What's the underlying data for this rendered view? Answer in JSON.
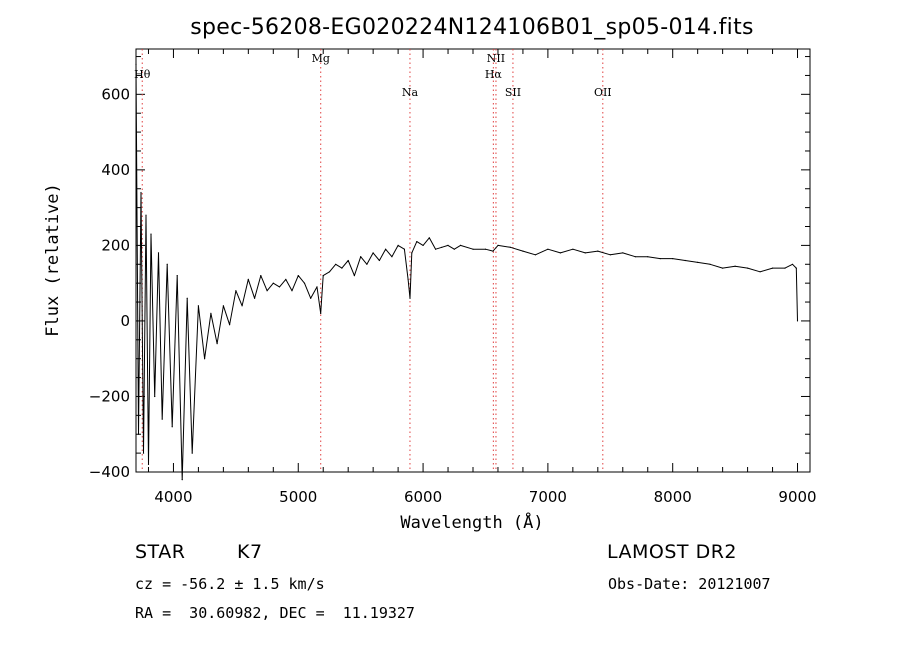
{
  "chart_data": {
    "type": "line",
    "title": "spec-56208-EG020224N124106B01_sp05-014.fits",
    "xlabel": "Wavelength (Å)",
    "ylabel": "Flux (relative)",
    "xlim": [
      3700,
      9100
    ],
    "ylim": [
      -400,
      720
    ],
    "xticks": [
      4000,
      5000,
      6000,
      7000,
      8000,
      9000
    ],
    "yticks": [
      -400,
      -200,
      0,
      200,
      400,
      600
    ],
    "xminor": 200,
    "yminor": 50,
    "grid": false,
    "series": [
      {
        "x": [
          3700,
          3720,
          3740,
          3760,
          3780,
          3800,
          3820,
          3850,
          3880,
          3910,
          3950,
          3990,
          4030,
          4070,
          4110,
          4150,
          4200,
          4250,
          4300,
          4350,
          4400,
          4450,
          4500,
          4550,
          4600,
          4650,
          4700,
          4750,
          4800,
          4850,
          4900,
          4950,
          5000,
          5050,
          5100,
          5150,
          5180,
          5200,
          5250,
          5300,
          5350,
          5400,
          5450,
          5500,
          5550,
          5600,
          5650,
          5700,
          5750,
          5800,
          5850,
          5880,
          5895,
          5910,
          5950,
          6000,
          6050,
          6100,
          6150,
          6200,
          6250,
          6300,
          6400,
          6500,
          6560,
          6600,
          6700,
          6800,
          6900,
          7000,
          7100,
          7200,
          7300,
          7400,
          7500,
          7600,
          7700,
          7800,
          7900,
          8000,
          8100,
          8200,
          8300,
          8400,
          8500,
          8600,
          8700,
          8800,
          8900,
          8960,
          8990,
          9000
        ],
        "y": [
          680,
          -300,
          340,
          -350,
          280,
          -380,
          230,
          -200,
          180,
          -260,
          150,
          -280,
          120,
          -420,
          60,
          -350,
          40,
          -100,
          20,
          -60,
          40,
          -10,
          80,
          40,
          110,
          60,
          120,
          80,
          100,
          90,
          110,
          80,
          120,
          100,
          60,
          90,
          20,
          120,
          130,
          150,
          140,
          160,
          120,
          170,
          150,
          180,
          160,
          190,
          170,
          200,
          190,
          110,
          60,
          180,
          210,
          200,
          220,
          190,
          195,
          200,
          190,
          200,
          190,
          190,
          185,
          200,
          195,
          185,
          175,
          190,
          180,
          190,
          180,
          185,
          175,
          180,
          170,
          170,
          165,
          165,
          160,
          155,
          150,
          140,
          145,
          140,
          130,
          140,
          140,
          150,
          140,
          0
        ]
      }
    ],
    "lines": [
      {
        "label": "Hθ",
        "x": 3750,
        "row": 2
      },
      {
        "label": "Mg",
        "x": 5180,
        "row": 1
      },
      {
        "label": "Na",
        "x": 5895,
        "row": 3
      },
      {
        "label": "NII",
        "x": 6584,
        "row": 1
      },
      {
        "label": "Hα",
        "x": 6563,
        "row": 2
      },
      {
        "label": "SII",
        "x": 6720,
        "row": 3
      },
      {
        "label": "OII",
        "x": 7440,
        "row": 3
      }
    ]
  },
  "info": {
    "class_label": "STAR",
    "subclass_label": "K7",
    "survey": "LAMOST DR2",
    "cz_line": "cz = -56.2 ± 1.5 km/s",
    "obs_date": "Obs-Date: 20121007",
    "coords": "RA =  30.60982, DEC =  11.19327"
  }
}
